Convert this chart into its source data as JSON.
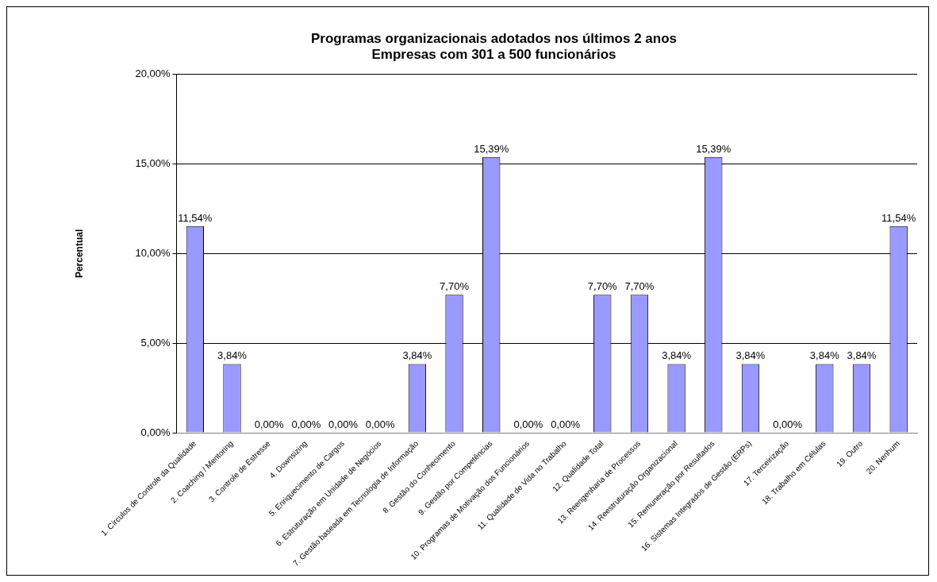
{
  "chart_data": {
    "type": "bar",
    "title": "Programas organizacionais adotados nos últimos 2 anos",
    "subtitle": "Empresas com 301 a 500 funcionários",
    "ylabel": "Percentual",
    "categories": [
      "1. Círculos de Controle da Qualidade",
      "2. Coaching / Mentoring",
      "3. Controle de Estresse",
      "4. Downsizing",
      "5. Enriquecimento de Cargos",
      "6. Estruturação em Unidade de Negócios",
      "7. Gestão baseada em Tecnologia de Informação",
      "8. Gestão do Conhecimento",
      "9. Gestão por Competências",
      "10. Programas de Motivação dos Funcionários",
      "11. Qualidade de Vida no Trabalho",
      "12. Qualidade Total",
      "13. Reengenharia de Processos",
      "14. Reestruturação Organizacional",
      "15. Remuneração por Resultados",
      "16. Sistemas Integrados de Gestão (ERPs)",
      "17. Terceirização",
      "18. Trabalho em Células",
      "19. Outro",
      "20. Nenhum"
    ],
    "values": [
      11.54,
      3.84,
      0,
      0,
      0,
      0,
      3.84,
      7.7,
      15.39,
      0,
      0,
      7.7,
      7.7,
      3.84,
      15.39,
      3.84,
      0,
      3.84,
      3.84,
      11.54
    ],
    "value_labels": [
      "11,54%",
      "3,84%",
      "0,00%",
      "0,00%",
      "0,00%",
      "0,00%",
      "3,84%",
      "7,70%",
      "15,39%",
      "0,00%",
      "0,00%",
      "7,70%",
      "7,70%",
      "3,84%",
      "15,39%",
      "3,84%",
      "0,00%",
      "3,84%",
      "3,84%",
      "11,54%"
    ],
    "color": "#9999ff",
    "ylim": [
      0,
      20
    ],
    "yticks": [
      {
        "value": 0,
        "label": "0,00%"
      },
      {
        "value": 5,
        "label": "5,00%"
      },
      {
        "value": 10,
        "label": "10,00%"
      },
      {
        "value": 15,
        "label": "15,00%"
      },
      {
        "value": 20,
        "label": "20,00%"
      }
    ],
    "grid": "y",
    "legend": false
  }
}
